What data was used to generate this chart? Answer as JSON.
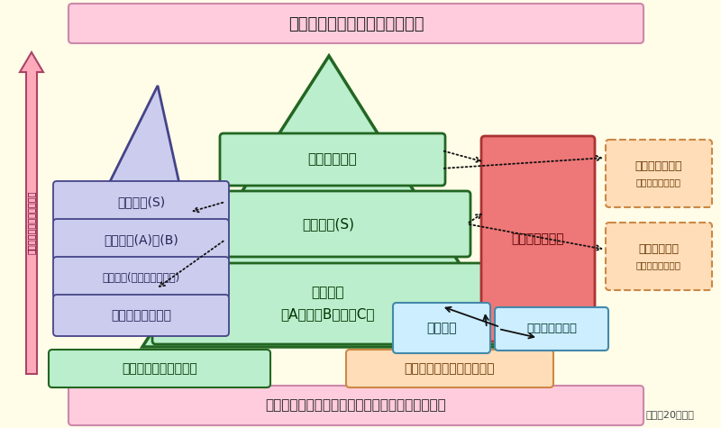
{
  "bg_color": "#FFFCE8",
  "title_top": "国際的に評価の高い研究の推進",
  "title_bottom": "研究者の自由な発想に基づく研究の多様性の確保",
  "year_note": "（平成20年度）",
  "left_arrow_text": "研究費の規模／研究の発展",
  "left_box_labels": [
    "若手研究(S)",
    "若手研究(A)・(B)",
    "若手研究(スタートアップ)",
    "特別研究員奨励費"
  ],
  "bottom_left_label": "若手研究者の自立支援",
  "bottom_right_label": "新領域の形成，挑戦的研究",
  "pyramid_labels": {
    "top": "特別推進研究",
    "mid": "基盤研究(S)",
    "bot_line1": "基盤研究",
    "bot_line2": "（A）・（B）・（C）"
  },
  "right_red_label": "新学術領域研究",
  "sprout_label": "萌芽研究",
  "promote_label": "特別研究促進費",
  "dashed_boxes": [
    {
      "label1": "学術創成研究費",
      "label2": "（新規募集停止）"
    },
    {
      "label1": "特定領域研究",
      "label2": "（新規募集停止）"
    }
  ],
  "colors": {
    "bg": "#FFFCE8",
    "top_box_fill": "#FFCCDD",
    "top_box_edge": "#CC88AA",
    "bottom_box_fill": "#FFCCDD",
    "bottom_box_edge": "#CC88AA",
    "pyramid_fill": "#BBEECC",
    "pyramid_edge": "#226622",
    "small_tri_fill": "#CCCCEE",
    "small_tri_edge": "#444488",
    "left_boxes_fill": "#CCCCEE",
    "left_boxes_edge": "#444488",
    "red_box_fill": "#EE7777",
    "red_box_edge": "#AA3333",
    "sprout_fill": "#CCEEFF",
    "sprout_edge": "#4488AA",
    "promote_fill": "#CCEEFF",
    "promote_edge": "#4488AA",
    "dashed_fill": "#FFDDB8",
    "dashed_edge": "#CC8844",
    "bot_left_fill": "#BBEECC",
    "bot_left_edge": "#226622",
    "bot_right_fill": "#FFDDB8",
    "bot_right_edge": "#CC8844",
    "left_arrow_fill": "#FFAABB",
    "left_arrow_edge": "#AA4466",
    "arrow_color": "#111111"
  }
}
